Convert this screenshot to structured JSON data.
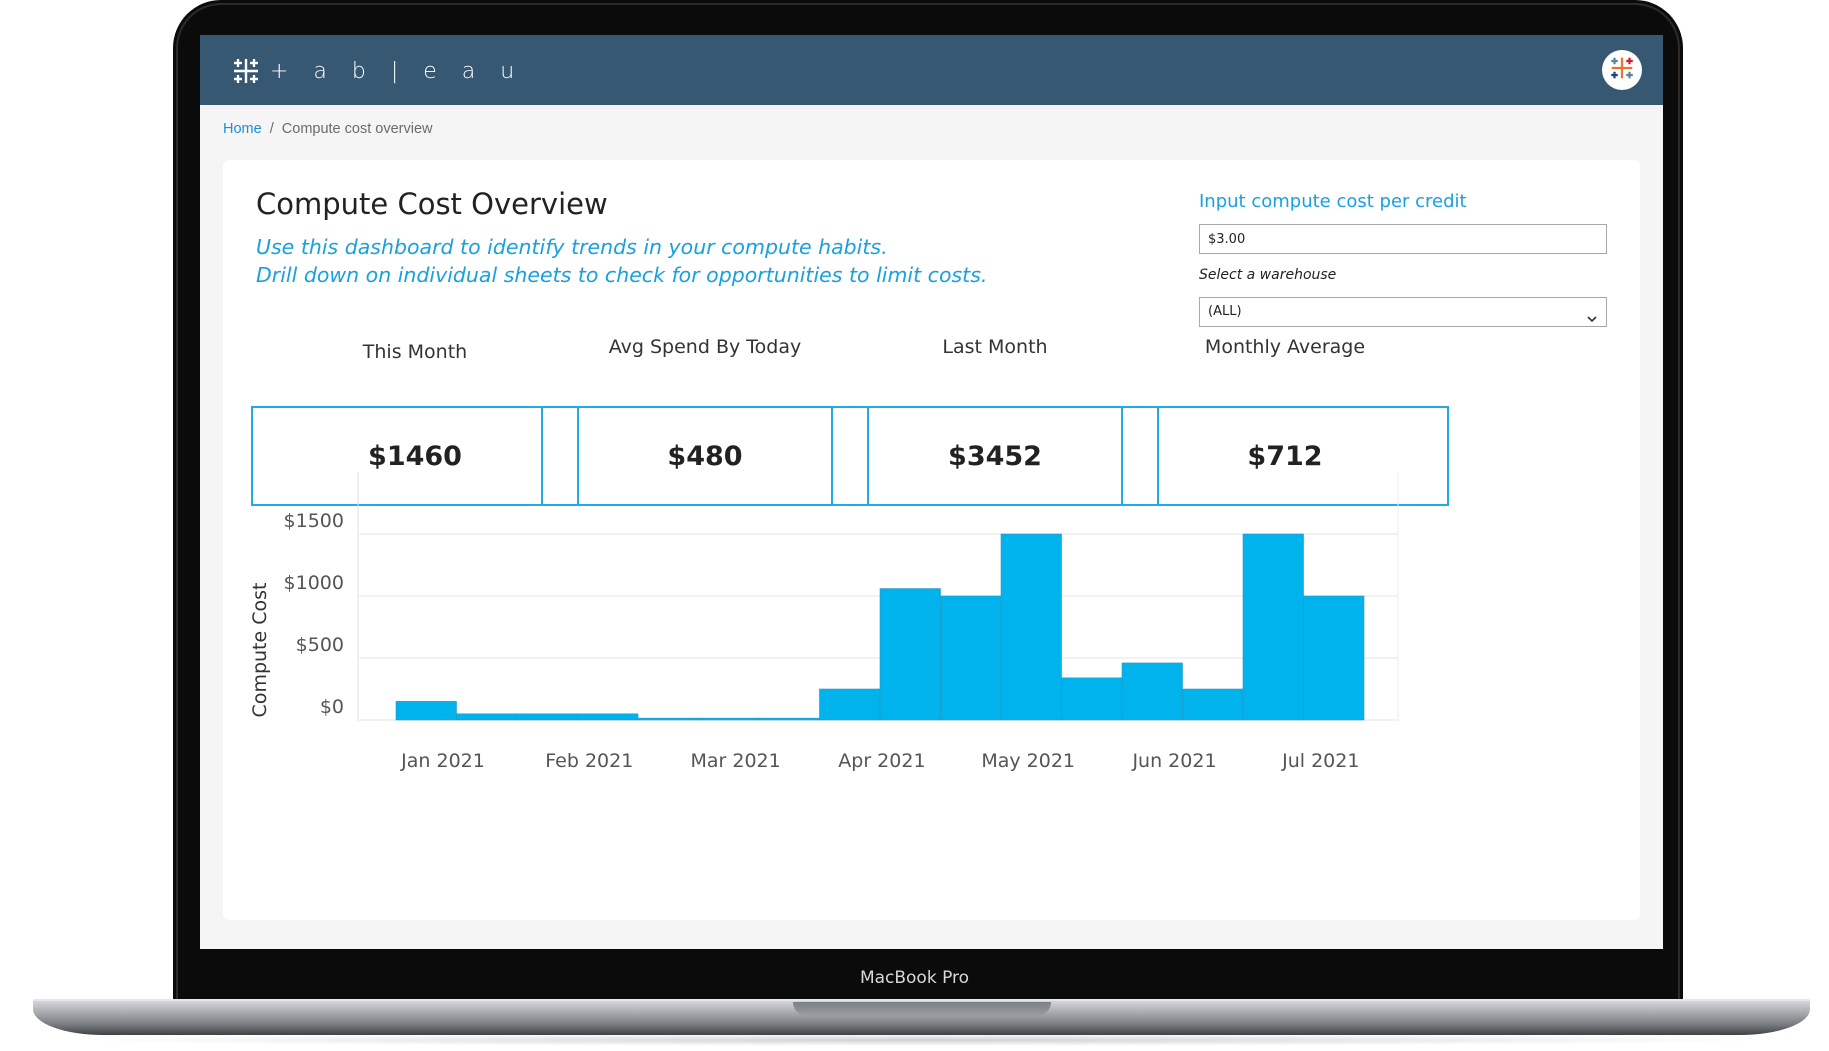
{
  "device": {
    "label": "MacBook Pro"
  },
  "header": {
    "logo_text": "+ a b | e a u",
    "logo_icon": "tableau-logo-icon",
    "avatar_icon": "tableau-color-logo-icon"
  },
  "breadcrumb": {
    "home": "Home",
    "separator": "/",
    "current": "Compute cost overview"
  },
  "dashboard": {
    "title": "Compute Cost Overview",
    "subtitle_line1": "Use this dashboard to identify trends in your compute habits.",
    "subtitle_line2": "Drill down on individual sheets to check for opportunities to limit costs."
  },
  "controls": {
    "cost_label": "Input compute cost per credit",
    "cost_value": "$3.00",
    "warehouse_label": "Select a warehouse",
    "warehouse_value": "(ALL)"
  },
  "kpis": [
    {
      "label": "This Month",
      "value": "$1460"
    },
    {
      "label": "Avg Spend By Today",
      "value": "$480"
    },
    {
      "label": "Last Month",
      "value": "$3452"
    },
    {
      "label": "Monthly Average",
      "value": "$712"
    }
  ],
  "colors": {
    "accent": "#1aa0de",
    "bar": "#00b3ec",
    "header": "#365872"
  },
  "chart_data": {
    "type": "bar",
    "ylabel": "Compute Cost",
    "xlabel": "",
    "ylim": [
      0,
      1500
    ],
    "yticks": [
      "$1500",
      "$1000",
      "$500",
      "$0"
    ],
    "ytick_values": [
      1500,
      1000,
      500,
      0
    ],
    "xticks": [
      "Jan 2021",
      "Feb 2021",
      "Mar 2021",
      "Apr 2021",
      "May 2021",
      "Jun 2021",
      "Jul 2021"
    ],
    "grid": true,
    "values": [
      150,
      50,
      50,
      50,
      15,
      15,
      15,
      250,
      1060,
      1000,
      1500,
      340,
      460,
      250,
      1500,
      1000
    ]
  }
}
